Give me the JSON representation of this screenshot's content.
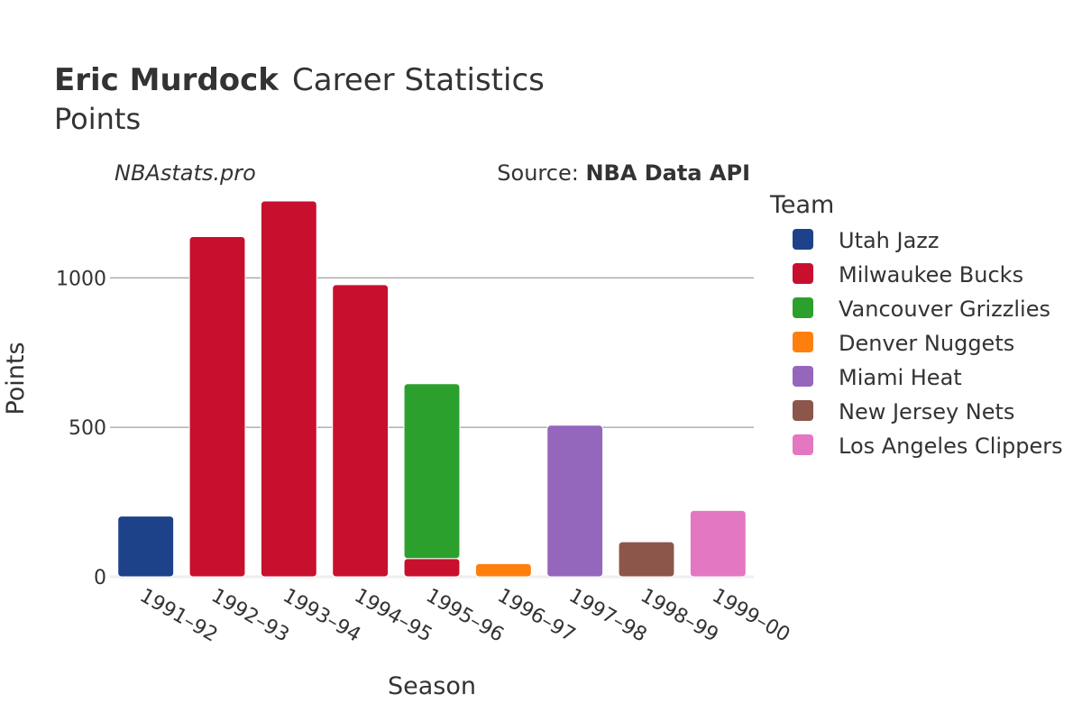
{
  "title": {
    "name": "Eric Murdock",
    "rest": "Career Statistics",
    "subtitle": "Points"
  },
  "watermark": "NBAstats.pro",
  "source": {
    "prefix": "Source: ",
    "name": "NBA Data API"
  },
  "chart_data": {
    "type": "bar",
    "stacked": true,
    "title": "Eric Murdock Career Statistics",
    "subtitle": "Points",
    "xlabel": "Season",
    "ylabel": "Points",
    "ylim": [
      0,
      1260
    ],
    "yticks": [
      0,
      500,
      1000
    ],
    "grid": true,
    "legend_title": "Team",
    "legend_position": "right",
    "categories": [
      "1991-92",
      "1992-93",
      "1993-94",
      "1994-95",
      "1995-96",
      "1996-97",
      "1997-98",
      "1998-99",
      "1999-00"
    ],
    "tick_labels": [
      "1991–92",
      "1992–93",
      "1993–94",
      "1994–95",
      "1995–96",
      "1996–97",
      "1997–98",
      "1998–99",
      "1999–00"
    ],
    "series": [
      {
        "name": "Utah Jazz",
        "color": "#1d428a",
        "values": [
          203,
          0,
          0,
          0,
          0,
          0,
          0,
          0,
          0
        ]
      },
      {
        "name": "Milwaukee Bucks",
        "color": "#c8102e",
        "values": [
          0,
          1138,
          1257,
          977,
          61,
          0,
          0,
          0,
          0
        ]
      },
      {
        "name": "Vancouver Grizzlies",
        "color": "#2ca02c",
        "values": [
          0,
          0,
          0,
          0,
          585,
          0,
          0,
          0,
          0
        ]
      },
      {
        "name": "Denver Nuggets",
        "color": "#ff7f0e",
        "values": [
          0,
          0,
          0,
          0,
          0,
          44,
          0,
          0,
          0
        ]
      },
      {
        "name": "Miami Heat",
        "color": "#9467bd",
        "values": [
          0,
          0,
          0,
          0,
          0,
          0,
          507,
          0,
          0
        ]
      },
      {
        "name": "New Jersey Nets",
        "color": "#8c564b",
        "values": [
          0,
          0,
          0,
          0,
          0,
          0,
          0,
          117,
          0
        ]
      },
      {
        "name": "Los Angeles Clippers",
        "color": "#e377c2",
        "values": [
          0,
          0,
          0,
          0,
          0,
          0,
          0,
          0,
          222
        ]
      }
    ]
  }
}
